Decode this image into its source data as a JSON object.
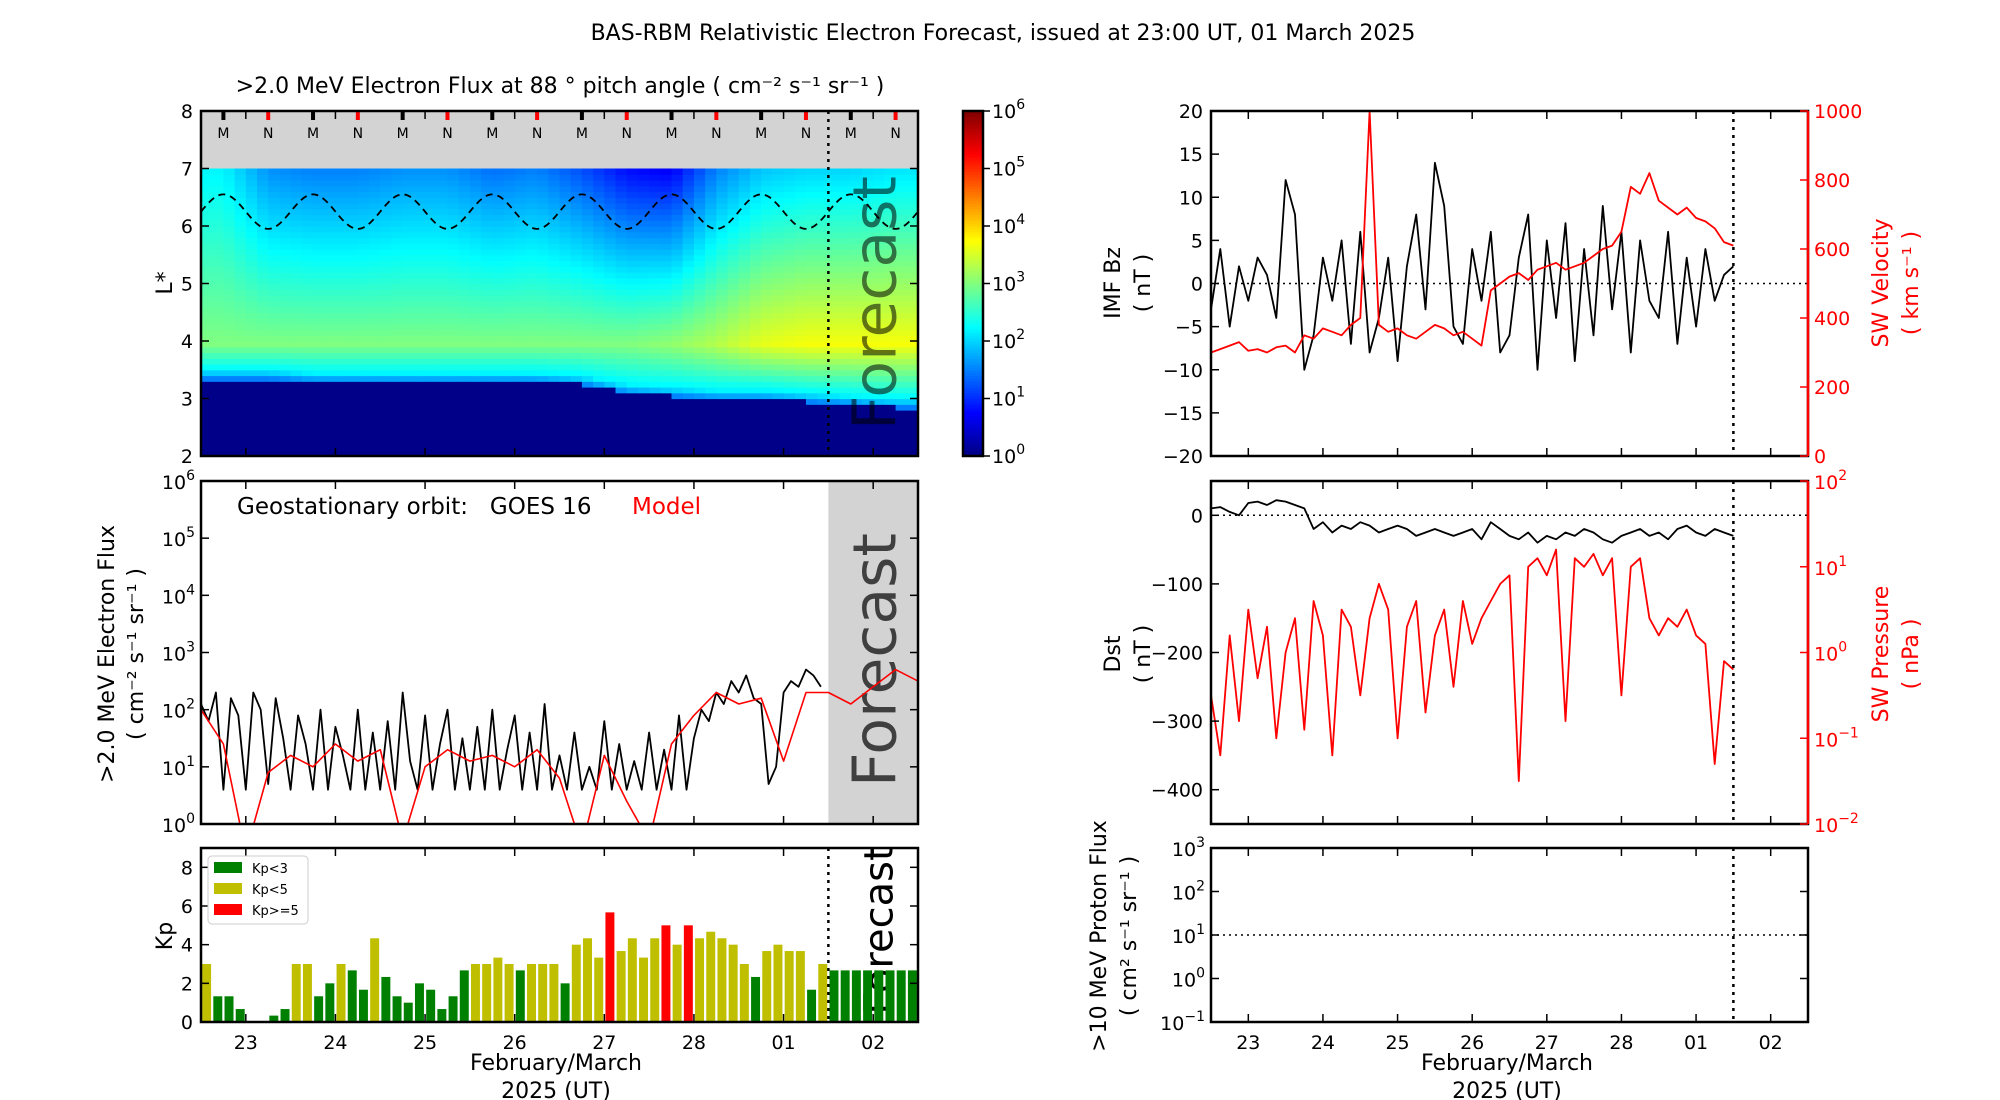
{
  "title": "BAS-RBM Relativistic Electron Forecast, issued at 23:00 UT, 01 March 2025",
  "forecast_label": "Forecast",
  "xaxis": {
    "days_span": [
      0,
      8
    ],
    "tick_positions_days": [
      0.5,
      1.5,
      2.5,
      3.5,
      4.5,
      5.5,
      6.5,
      7.5
    ],
    "tick_labels": [
      "23",
      "24",
      "25",
      "26",
      "27",
      "28",
      "01",
      "02"
    ],
    "label_line1": "February/March",
    "label_line2": "2025 (UT)",
    "forecast_start_day": 7.0
  },
  "colors": {
    "kp_low": "#008000",
    "kp_mid": "#bfbf00",
    "kp_high": "#ff0000",
    "model": "#ff0000",
    "grey": "#d3d3d3"
  },
  "chart_data": [
    {
      "id": "flux-heatmap",
      "type": "heatmap",
      "title": ">2.0 MeV Electron Flux at 88 ° pitch angle ( cm⁻² s⁻¹ sr⁻¹ )",
      "ylabel": "L*",
      "ylim": [
        2,
        8
      ],
      "yticks": [
        2,
        3,
        4,
        5,
        6,
        7,
        8
      ],
      "colorbar": {
        "log10_range": [
          0,
          6
        ],
        "tick_exponents": [
          0,
          1,
          2,
          3,
          4,
          5,
          6
        ],
        "colormap": "jet"
      },
      "columns_half_day": {
        "inner_edge_L": [
          3.35,
          3.35,
          3.3,
          3.3,
          3.3,
          3.3,
          3.3,
          3.3,
          3.25,
          3.1,
          3.05,
          3.0,
          3.0,
          2.95,
          2.9,
          2.85
        ],
        "peak_log10_flux": [
          3.0,
          3.0,
          3.0,
          3.0,
          3.0,
          3.0,
          3.0,
          3.0,
          3.0,
          3.0,
          3.1,
          3.3,
          3.6,
          3.7,
          3.7,
          3.7
        ],
        "outer_log10_flux_L7": [
          2.2,
          1.6,
          1.5,
          1.5,
          1.6,
          1.6,
          1.4,
          1.5,
          1.2,
          0.8,
          0.7,
          1.5,
          1.9,
          2.0,
          2.0,
          2.1
        ]
      },
      "no_data_above_L": 7,
      "boundary_curve": {
        "mean_L": 6.25,
        "amplitude_L": 0.3,
        "period_days": 1,
        "peak_day": 0.25
      },
      "markers": [
        {
          "label": "M",
          "day": 0.25
        },
        {
          "label": "N",
          "day": 0.75
        },
        {
          "label": "M",
          "day": 1.25
        },
        {
          "label": "N",
          "day": 1.75
        },
        {
          "label": "M",
          "day": 2.25
        },
        {
          "label": "N",
          "day": 2.75
        },
        {
          "label": "M",
          "day": 3.25
        },
        {
          "label": "N",
          "day": 3.75
        },
        {
          "label": "M",
          "day": 4.25
        },
        {
          "label": "N",
          "day": 4.75
        },
        {
          "label": "M",
          "day": 5.25
        },
        {
          "label": "N",
          "day": 5.75
        },
        {
          "label": "M",
          "day": 6.25
        },
        {
          "label": "N",
          "day": 6.75
        },
        {
          "label": "M",
          "day": 7.25
        },
        {
          "label": "N",
          "day": 7.75
        }
      ]
    },
    {
      "id": "geo-flux",
      "type": "line",
      "ylabel_line1": ">2.0 MeV Electron Flux",
      "ylabel_line2": "( cm⁻² s⁻¹ sr⁻¹ )",
      "annotation": "Geostationary orbit:   GOES 16",
      "annotation_model": "Model",
      "ylim_log10": [
        0,
        6
      ],
      "ytick_exponents": [
        0,
        1,
        2,
        3,
        4,
        5,
        6
      ],
      "series": [
        {
          "name": "GOES 16",
          "color": "#000000",
          "step_days": 0.0833333,
          "log10_values": [
            2.1,
            1.8,
            2.3,
            0.6,
            2.2,
            1.9,
            0.6,
            2.3,
            2.0,
            0.7,
            2.2,
            1.5,
            0.6,
            1.9,
            1.4,
            0.6,
            2.0,
            0.6,
            1.7,
            1.2,
            0.6,
            2.0,
            0.6,
            1.6,
            0.6,
            1.8,
            0.6,
            2.3,
            1.1,
            0.6,
            1.9,
            0.6,
            1.4,
            2.0,
            0.6,
            1.5,
            0.6,
            1.7,
            0.6,
            2.0,
            0.6,
            1.3,
            1.9,
            0.6,
            1.6,
            0.6,
            2.1,
            0.6,
            1.2,
            0.6,
            1.6,
            0.6,
            1.0,
            0.6,
            1.8,
            0.6,
            1.4,
            0.6,
            1.1,
            0.6,
            1.6,
            0.6,
            1.3,
            0.6,
            1.9,
            0.6,
            1.5,
            2.0,
            1.8,
            2.3,
            2.1,
            2.5,
            2.3,
            2.6,
            2.2,
            2.1,
            0.7,
            1.0,
            2.3,
            2.5,
            2.4,
            2.7,
            2.6,
            2.4
          ]
        },
        {
          "name": "Model",
          "color": "#ff0000",
          "step_days": 0.25,
          "log10_values": [
            2.0,
            1.4,
            -0.5,
            0.9,
            1.2,
            1.0,
            1.4,
            1.1,
            1.3,
            -0.3,
            1.0,
            1.3,
            1.1,
            1.2,
            1.0,
            1.3,
            0.8,
            -0.4,
            1.2,
            0.4,
            -0.3,
            1.4,
            1.9,
            2.3,
            2.1,
            2.2,
            1.1,
            2.3,
            2.3,
            2.1,
            2.4,
            2.7,
            2.5
          ]
        }
      ]
    },
    {
      "id": "kp",
      "type": "bar",
      "ylabel": "Kp",
      "ylim": [
        0,
        9
      ],
      "yticks": [
        0,
        2,
        4,
        6,
        8
      ],
      "bar_step_days": 0.125,
      "legend": [
        {
          "label": "Kp<3",
          "color": "#008000"
        },
        {
          "label": "Kp<5",
          "color": "#bfbf00"
        },
        {
          "label": "Kp>=5",
          "color": "#ff0000"
        }
      ],
      "values": [
        3,
        1.33,
        1.33,
        0.67,
        0,
        0,
        0.33,
        0.67,
        3,
        3,
        1.33,
        2,
        3,
        2.67,
        1.67,
        4.33,
        2.33,
        1.33,
        1,
        2,
        1.67,
        0.67,
        1.33,
        2.67,
        3,
        3,
        3.33,
        3,
        2.67,
        3,
        3,
        3,
        2,
        4,
        4.33,
        3.33,
        5.67,
        3.67,
        4.33,
        3.33,
        4.33,
        5,
        4,
        5,
        4.33,
        4.67,
        4.33,
        4,
        3,
        2.33,
        3.67,
        4,
        3.67,
        3.67,
        1.67,
        3,
        2.67,
        2.67,
        2.67,
        2.67,
        2.67,
        2.67,
        2.67,
        2.67
      ]
    },
    {
      "id": "imf-sw",
      "type": "line",
      "ylabel_line1": "IMF Bz",
      "ylabel_line2": "( nT )",
      "ylim": [
        -20,
        20
      ],
      "yticks": [
        -20,
        -15,
        -10,
        -5,
        0,
        5,
        10,
        15,
        20
      ],
      "y2label_line1": "SW Velocity",
      "y2label_line2": "( km s⁻¹ )",
      "y2lim": [
        0,
        1000
      ],
      "y2ticks": [
        0,
        200,
        400,
        600,
        800,
        1000
      ],
      "step_days": 0.125,
      "series": [
        {
          "name": "IMF Bz",
          "color": "#000000",
          "values": [
            -3,
            4,
            -5,
            2,
            -2,
            3,
            1,
            -4,
            12,
            8,
            -10,
            -6,
            3,
            -2,
            5,
            -7,
            6,
            -8,
            -4,
            3,
            -9,
            2,
            8,
            -3,
            14,
            9,
            -5,
            -7,
            4,
            -2,
            6,
            -8,
            -6,
            3,
            8,
            -10,
            5,
            -4,
            7,
            -9,
            4,
            -6,
            9,
            -3,
            6,
            -8,
            5,
            -2,
            -4,
            6,
            -7,
            3,
            -5,
            4,
            -2,
            1,
            2
          ]
        },
        {
          "name": "SW Velocity",
          "color": "#ff0000",
          "axis": "right",
          "values": [
            300,
            310,
            320,
            330,
            305,
            310,
            300,
            315,
            320,
            300,
            350,
            340,
            370,
            360,
            350,
            380,
            400,
            1000,
            380,
            360,
            370,
            350,
            340,
            360,
            380,
            370,
            350,
            360,
            340,
            320,
            480,
            500,
            520,
            530,
            510,
            540,
            550,
            560,
            540,
            550,
            560,
            580,
            600,
            610,
            650,
            780,
            760,
            820,
            740,
            720,
            700,
            720,
            690,
            680,
            660,
            620,
            610
          ]
        }
      ]
    },
    {
      "id": "dst-pressure",
      "type": "line",
      "ylabel_line1": "Dst",
      "ylabel_line2": "( nT )",
      "ylim": [
        -450,
        50
      ],
      "yticks": [
        -400,
        -300,
        -200,
        -100,
        0
      ],
      "y2label_line1": "SW Pressure",
      "y2label_line2": "( nPa )",
      "y2lim_log10": [
        -2,
        2
      ],
      "y2tick_exponents": [
        -2,
        -1,
        0,
        1,
        2
      ],
      "step_days": 0.125,
      "series": [
        {
          "name": "Dst",
          "color": "#000000",
          "values": [
            10,
            12,
            5,
            0,
            18,
            20,
            15,
            22,
            20,
            15,
            10,
            -20,
            -10,
            -25,
            -15,
            -20,
            -10,
            -15,
            -25,
            -20,
            -15,
            -20,
            -30,
            -25,
            -20,
            -25,
            -30,
            -25,
            -20,
            -35,
            -10,
            -20,
            -30,
            -35,
            -25,
            -40,
            -30,
            -35,
            -25,
            -30,
            -20,
            -25,
            -35,
            -40,
            -30,
            -25,
            -20,
            -30,
            -25,
            -35,
            -20,
            -15,
            -25,
            -30,
            -20,
            -25,
            -30
          ]
        },
        {
          "name": "SW Pressure",
          "color": "#ff0000",
          "axis": "right",
          "log10_values": [
            -0.5,
            -1.2,
            0.2,
            -0.8,
            0.5,
            -0.3,
            0.3,
            -1.0,
            0.0,
            0.4,
            -0.9,
            0.6,
            0.2,
            -1.2,
            0.5,
            0.3,
            -0.5,
            0.4,
            0.8,
            0.5,
            -1.0,
            0.3,
            0.6,
            -0.7,
            0.2,
            0.5,
            -0.4,
            0.6,
            0.1,
            0.4,
            0.6,
            0.8,
            0.9,
            -1.5,
            1.0,
            1.1,
            0.9,
            1.2,
            -0.8,
            1.1,
            1.0,
            1.15,
            0.9,
            1.1,
            -0.5,
            1.0,
            1.1,
            0.4,
            0.2,
            0.4,
            0.3,
            0.5,
            0.2,
            0.1,
            -1.3,
            -0.1,
            -0.2
          ]
        }
      ]
    },
    {
      "id": "proton",
      "type": "line",
      "ylabel_line1": ">10 MeV Proton Flux",
      "ylabel_line2": "( cm² s⁻¹ sr⁻¹ )",
      "ylim_log10": [
        -1,
        3
      ],
      "ytick_exponents": [
        -1,
        0,
        1,
        2,
        3
      ],
      "threshold_log10": 1,
      "series": []
    }
  ]
}
